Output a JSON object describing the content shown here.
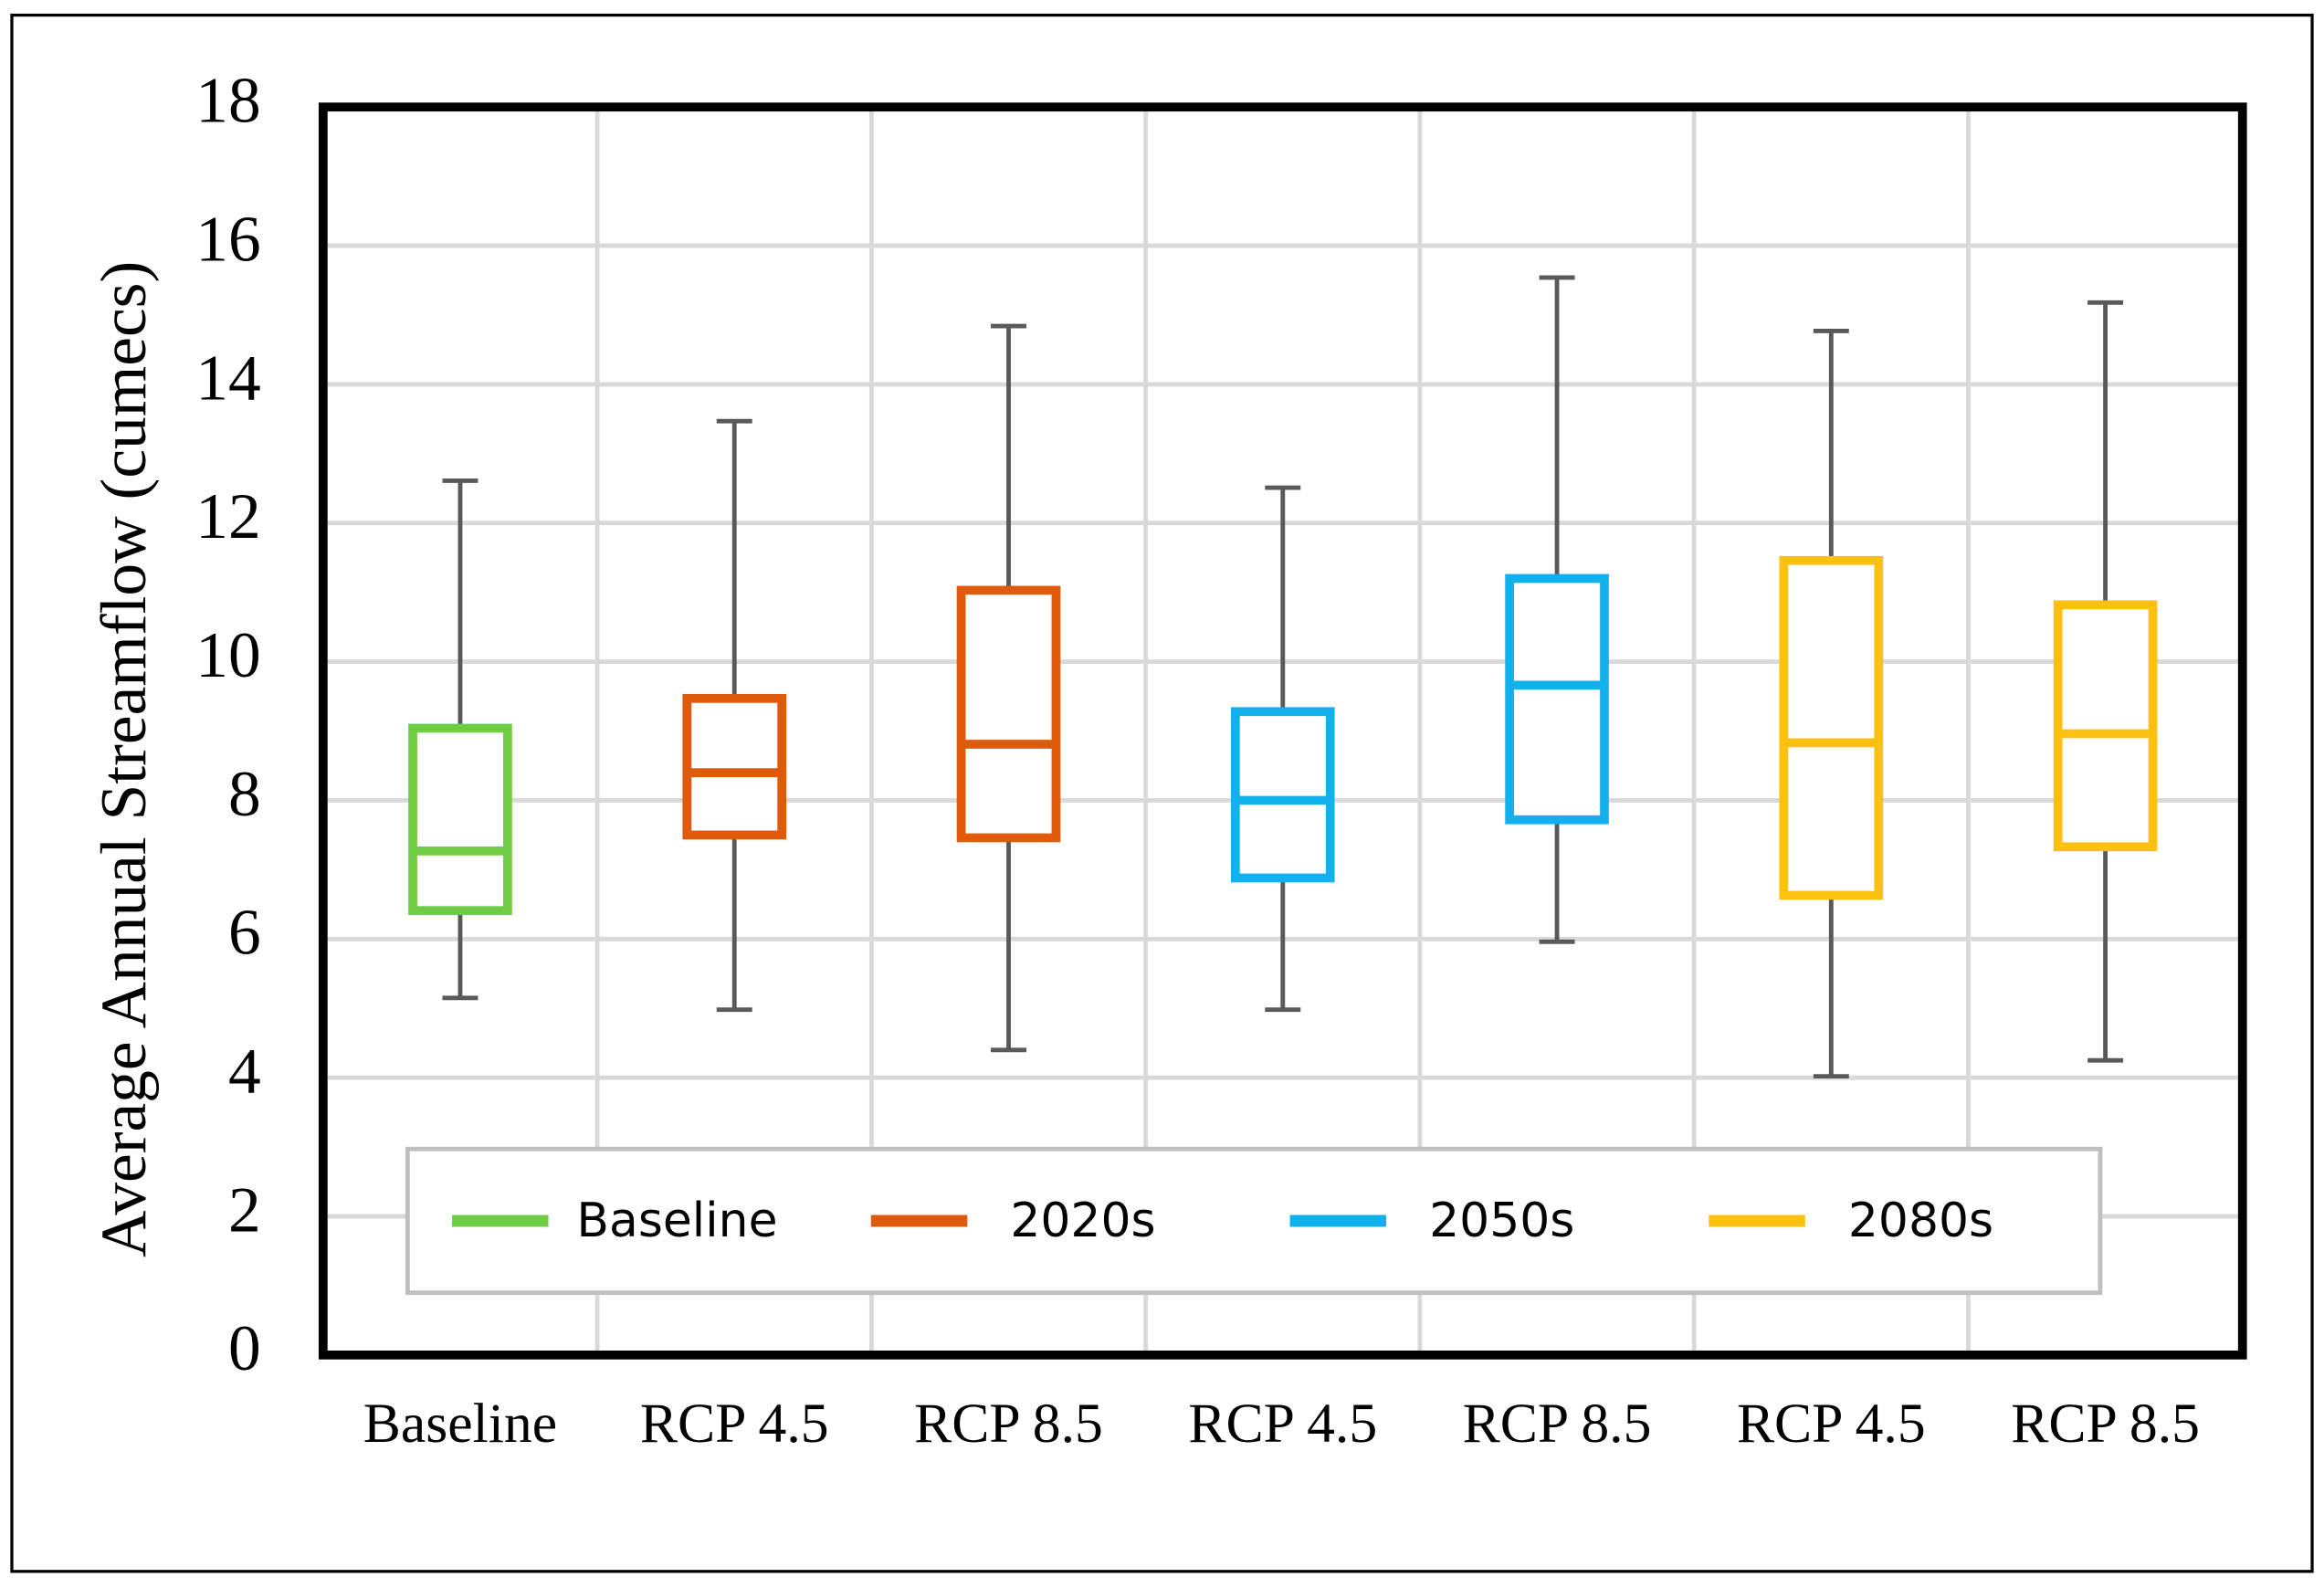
{
  "chart_data": {
    "type": "box",
    "y_label": "Average Annual Streamflow (cumecs)",
    "ylim": [
      0,
      18
    ],
    "yticks": [
      0,
      2,
      4,
      6,
      8,
      10,
      12,
      14,
      16,
      18
    ],
    "grid": true,
    "legend": "bottom",
    "series": [
      {
        "name": "Baseline",
        "color": "#70cc44",
        "categories": [
          "Baseline"
        ],
        "min": [
          5.15
        ],
        "q1": [
          6.41
        ],
        "median": [
          7.27
        ],
        "q3": [
          9.04
        ],
        "max": [
          12.61
        ]
      },
      {
        "name": "2020s",
        "color": "#e05a0c",
        "categories": [
          "RCP 4.5",
          "RCP 8.5"
        ],
        "min": [
          4.98,
          4.4
        ],
        "q1": [
          7.5,
          7.46
        ],
        "median": [
          8.4,
          8.81
        ],
        "q3": [
          9.47,
          11.03
        ],
        "max": [
          13.47,
          14.84
        ]
      },
      {
        "name": "2050s",
        "color": "#13b0ee",
        "categories": [
          "RCP 4.5",
          "RCP 8.5"
        ],
        "min": [
          4.98,
          5.96
        ],
        "q1": [
          6.88,
          7.72
        ],
        "median": [
          8.0,
          9.66
        ],
        "q3": [
          9.28,
          11.2
        ],
        "max": [
          12.51,
          15.54
        ]
      },
      {
        "name": "2080s",
        "color": "#fcc010",
        "categories": [
          "RCP 4.5",
          "RCP 8.5"
        ],
        "min": [
          4.02,
          4.25
        ],
        "q1": [
          6.63,
          7.33
        ],
        "median": [
          8.83,
          8.96
        ],
        "q3": [
          11.46,
          10.82
        ],
        "max": [
          14.77,
          15.18
        ]
      }
    ]
  }
}
